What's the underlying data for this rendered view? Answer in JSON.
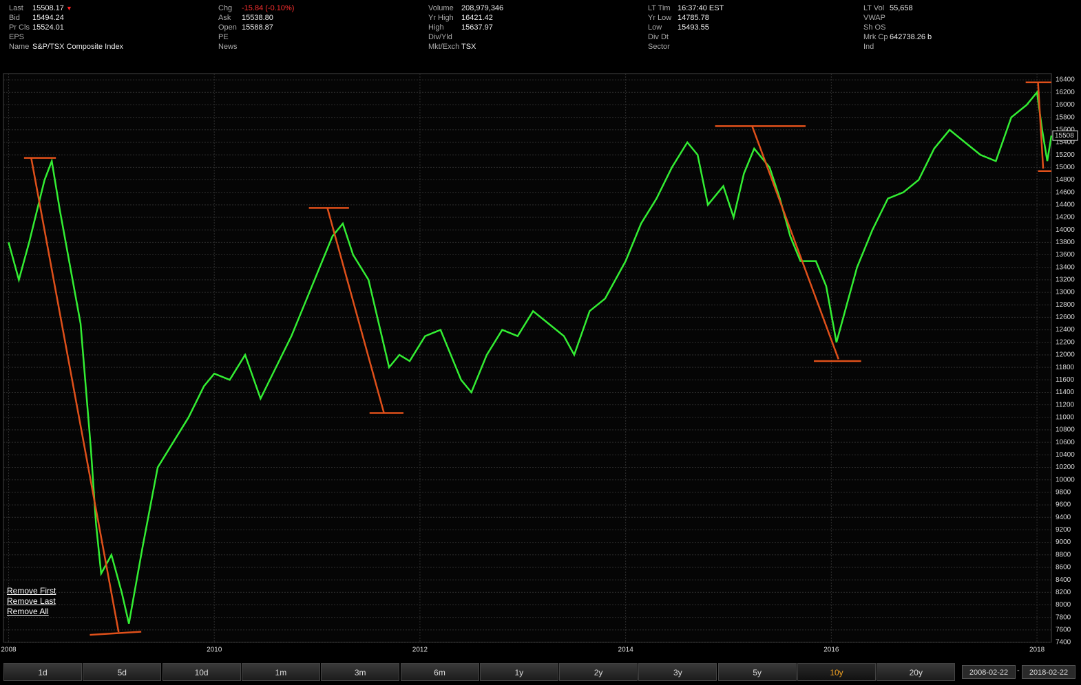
{
  "header": {
    "columns": [
      [
        {
          "label": "Last",
          "value": "15508.17"
        },
        {
          "label": "Bid",
          "value": "15494.24"
        },
        {
          "label": "Pr Cls",
          "value": "15524.01"
        },
        {
          "label": "EPS"
        },
        {
          "label": "Name",
          "value": "S&P/TSX Composite Index"
        }
      ],
      [
        {
          "label": "Chg",
          "value": "-15.84 (-0.10%)"
        },
        {
          "label": "Ask",
          "value": "15538.80"
        },
        {
          "label": "Open",
          "value": "15588.87"
        },
        {
          "label": "PE"
        },
        {
          "label": "News"
        }
      ],
      [
        {
          "label": "Volume",
          "value": "208,979,346"
        },
        {
          "label": "Yr High",
          "value": "16421.42"
        },
        {
          "label": "High",
          "value": "15637.97"
        },
        {
          "label": "Div/Yld"
        },
        {
          "label": "Mkt/Exch",
          "value": "TSX"
        }
      ],
      [
        {
          "label": "LT Tim",
          "value": "16:37:40 EST"
        },
        {
          "label": "Yr Low",
          "value": "14785.78"
        },
        {
          "label": "Low",
          "value": "15493.55"
        },
        {
          "label": "Div Dt"
        },
        {
          "label": "Sector"
        }
      ],
      [
        {
          "label": "LT Vol",
          "value": "55,658"
        },
        {
          "label": "VWAP"
        },
        {
          "label": "Sh OS"
        },
        {
          "label": "Mrk Cp",
          "value": "642738.26 b"
        },
        {
          "label": "Ind"
        }
      ]
    ]
  },
  "links": [
    "Remove First",
    "Remove Last",
    "Remove All"
  ],
  "ranges": {
    "buttons": [
      "1d",
      "5d",
      "10d",
      "1m",
      "3m",
      "6m",
      "1y",
      "2y",
      "3y",
      "5y",
      "10y",
      "20y"
    ],
    "selected": 10,
    "start": "2008-02-22",
    "end": "2018-02-22"
  },
  "chart_data": {
    "type": "line",
    "x": [
      2008.0,
      2008.1,
      2008.2,
      2008.35,
      2008.42,
      2008.5,
      2008.6,
      2008.7,
      2008.8,
      2008.85,
      2008.9,
      2009.0,
      2009.1,
      2009.17,
      2009.3,
      2009.45,
      2009.6,
      2009.75,
      2009.9,
      2010.0,
      2010.15,
      2010.3,
      2010.45,
      2010.6,
      2010.75,
      2010.9,
      2011.0,
      2011.15,
      2011.25,
      2011.35,
      2011.5,
      2011.6,
      2011.7,
      2011.8,
      2011.9,
      2012.05,
      2012.2,
      2012.4,
      2012.5,
      2012.65,
      2012.8,
      2012.95,
      2013.1,
      2013.25,
      2013.4,
      2013.5,
      2013.65,
      2013.8,
      2014.0,
      2014.15,
      2014.3,
      2014.45,
      2014.6,
      2014.7,
      2014.8,
      2014.95,
      2015.05,
      2015.15,
      2015.25,
      2015.4,
      2015.5,
      2015.6,
      2015.7,
      2015.85,
      2015.95,
      2016.05,
      2016.15,
      2016.25,
      2016.4,
      2016.55,
      2016.7,
      2016.85,
      2017.0,
      2017.15,
      2017.3,
      2017.45,
      2017.6,
      2017.75,
      2017.9,
      2018.0,
      2018.05,
      2018.1,
      2018.14
    ],
    "series": [
      {
        "color": "#33ee33",
        "values": [
          13800,
          13200,
          13800,
          14800,
          15100,
          14300,
          13400,
          12500,
          10500,
          9300,
          8500,
          8800,
          8200,
          7700,
          8900,
          10200,
          10600,
          11000,
          11500,
          11700,
          11600,
          12000,
          11300,
          11800,
          12300,
          12900,
          13300,
          13900,
          14100,
          13600,
          13200,
          12500,
          11800,
          12000,
          11900,
          12300,
          12400,
          11600,
          11400,
          12000,
          12400,
          12300,
          12700,
          12500,
          12300,
          12000,
          12700,
          12900,
          13500,
          14100,
          14500,
          15000,
          15400,
          15200,
          14400,
          14700,
          14200,
          14900,
          15300,
          15000,
          14500,
          13900,
          13500,
          13500,
          13100,
          12200,
          12800,
          13400,
          14000,
          14500,
          14600,
          14800,
          15300,
          15600,
          15400,
          15200,
          15100,
          15800,
          16000,
          16200,
          15600,
          15100,
          15508
        ]
      }
    ],
    "xlim": [
      2007.95,
      2018.14
    ],
    "xticks": [
      2008,
      2010,
      2012,
      2014,
      2016,
      2018
    ],
    "ylim": [
      7400,
      16500
    ],
    "yticks": [
      7400,
      7600,
      7800,
      8000,
      8200,
      8400,
      8600,
      8800,
      9000,
      9200,
      9400,
      9600,
      9800,
      10000,
      10200,
      10400,
      10600,
      10800,
      11000,
      11200,
      11400,
      11600,
      11800,
      12000,
      12200,
      12400,
      12600,
      12800,
      13000,
      13200,
      13400,
      13600,
      13800,
      14000,
      14200,
      14400,
      14600,
      14800,
      15000,
      15200,
      15400,
      15600,
      15800,
      16000,
      16200,
      16400
    ],
    "grid": true,
    "price_marker": {
      "value": 15508.17,
      "label": "15508"
    },
    "drawing_color": "#e0501a",
    "drawings": [
      {
        "x": [
          2008.15,
          2008.46
        ],
        "y": [
          15150,
          15150
        ]
      },
      {
        "x": [
          2008.22,
          2009.07
        ],
        "y": [
          15150,
          7565
        ]
      },
      {
        "x": [
          2008.79,
          2009.29
        ],
        "y": [
          7520,
          7570
        ]
      },
      {
        "x": [
          2010.92,
          2011.31
        ],
        "y": [
          14350,
          14350
        ]
      },
      {
        "x": [
          2011.1,
          2011.65
        ],
        "y": [
          14350,
          11070
        ]
      },
      {
        "x": [
          2011.51,
          2011.84
        ],
        "y": [
          11070,
          11070
        ]
      },
      {
        "x": [
          2014.87,
          2015.75
        ],
        "y": [
          15660,
          15660
        ]
      },
      {
        "x": [
          2015.23,
          2016.07
        ],
        "y": [
          15660,
          11930
        ]
      },
      {
        "x": [
          2015.83,
          2016.29
        ],
        "y": [
          11900,
          11900
        ]
      },
      {
        "x": [
          2017.89,
          2018.14
        ],
        "y": [
          16360,
          16360
        ]
      },
      {
        "x": [
          2018.01,
          2018.06
        ],
        "y": [
          16360,
          14980
        ]
      },
      {
        "x": [
          2018.01,
          2018.14
        ],
        "y": [
          14940,
          14940
        ]
      }
    ]
  }
}
